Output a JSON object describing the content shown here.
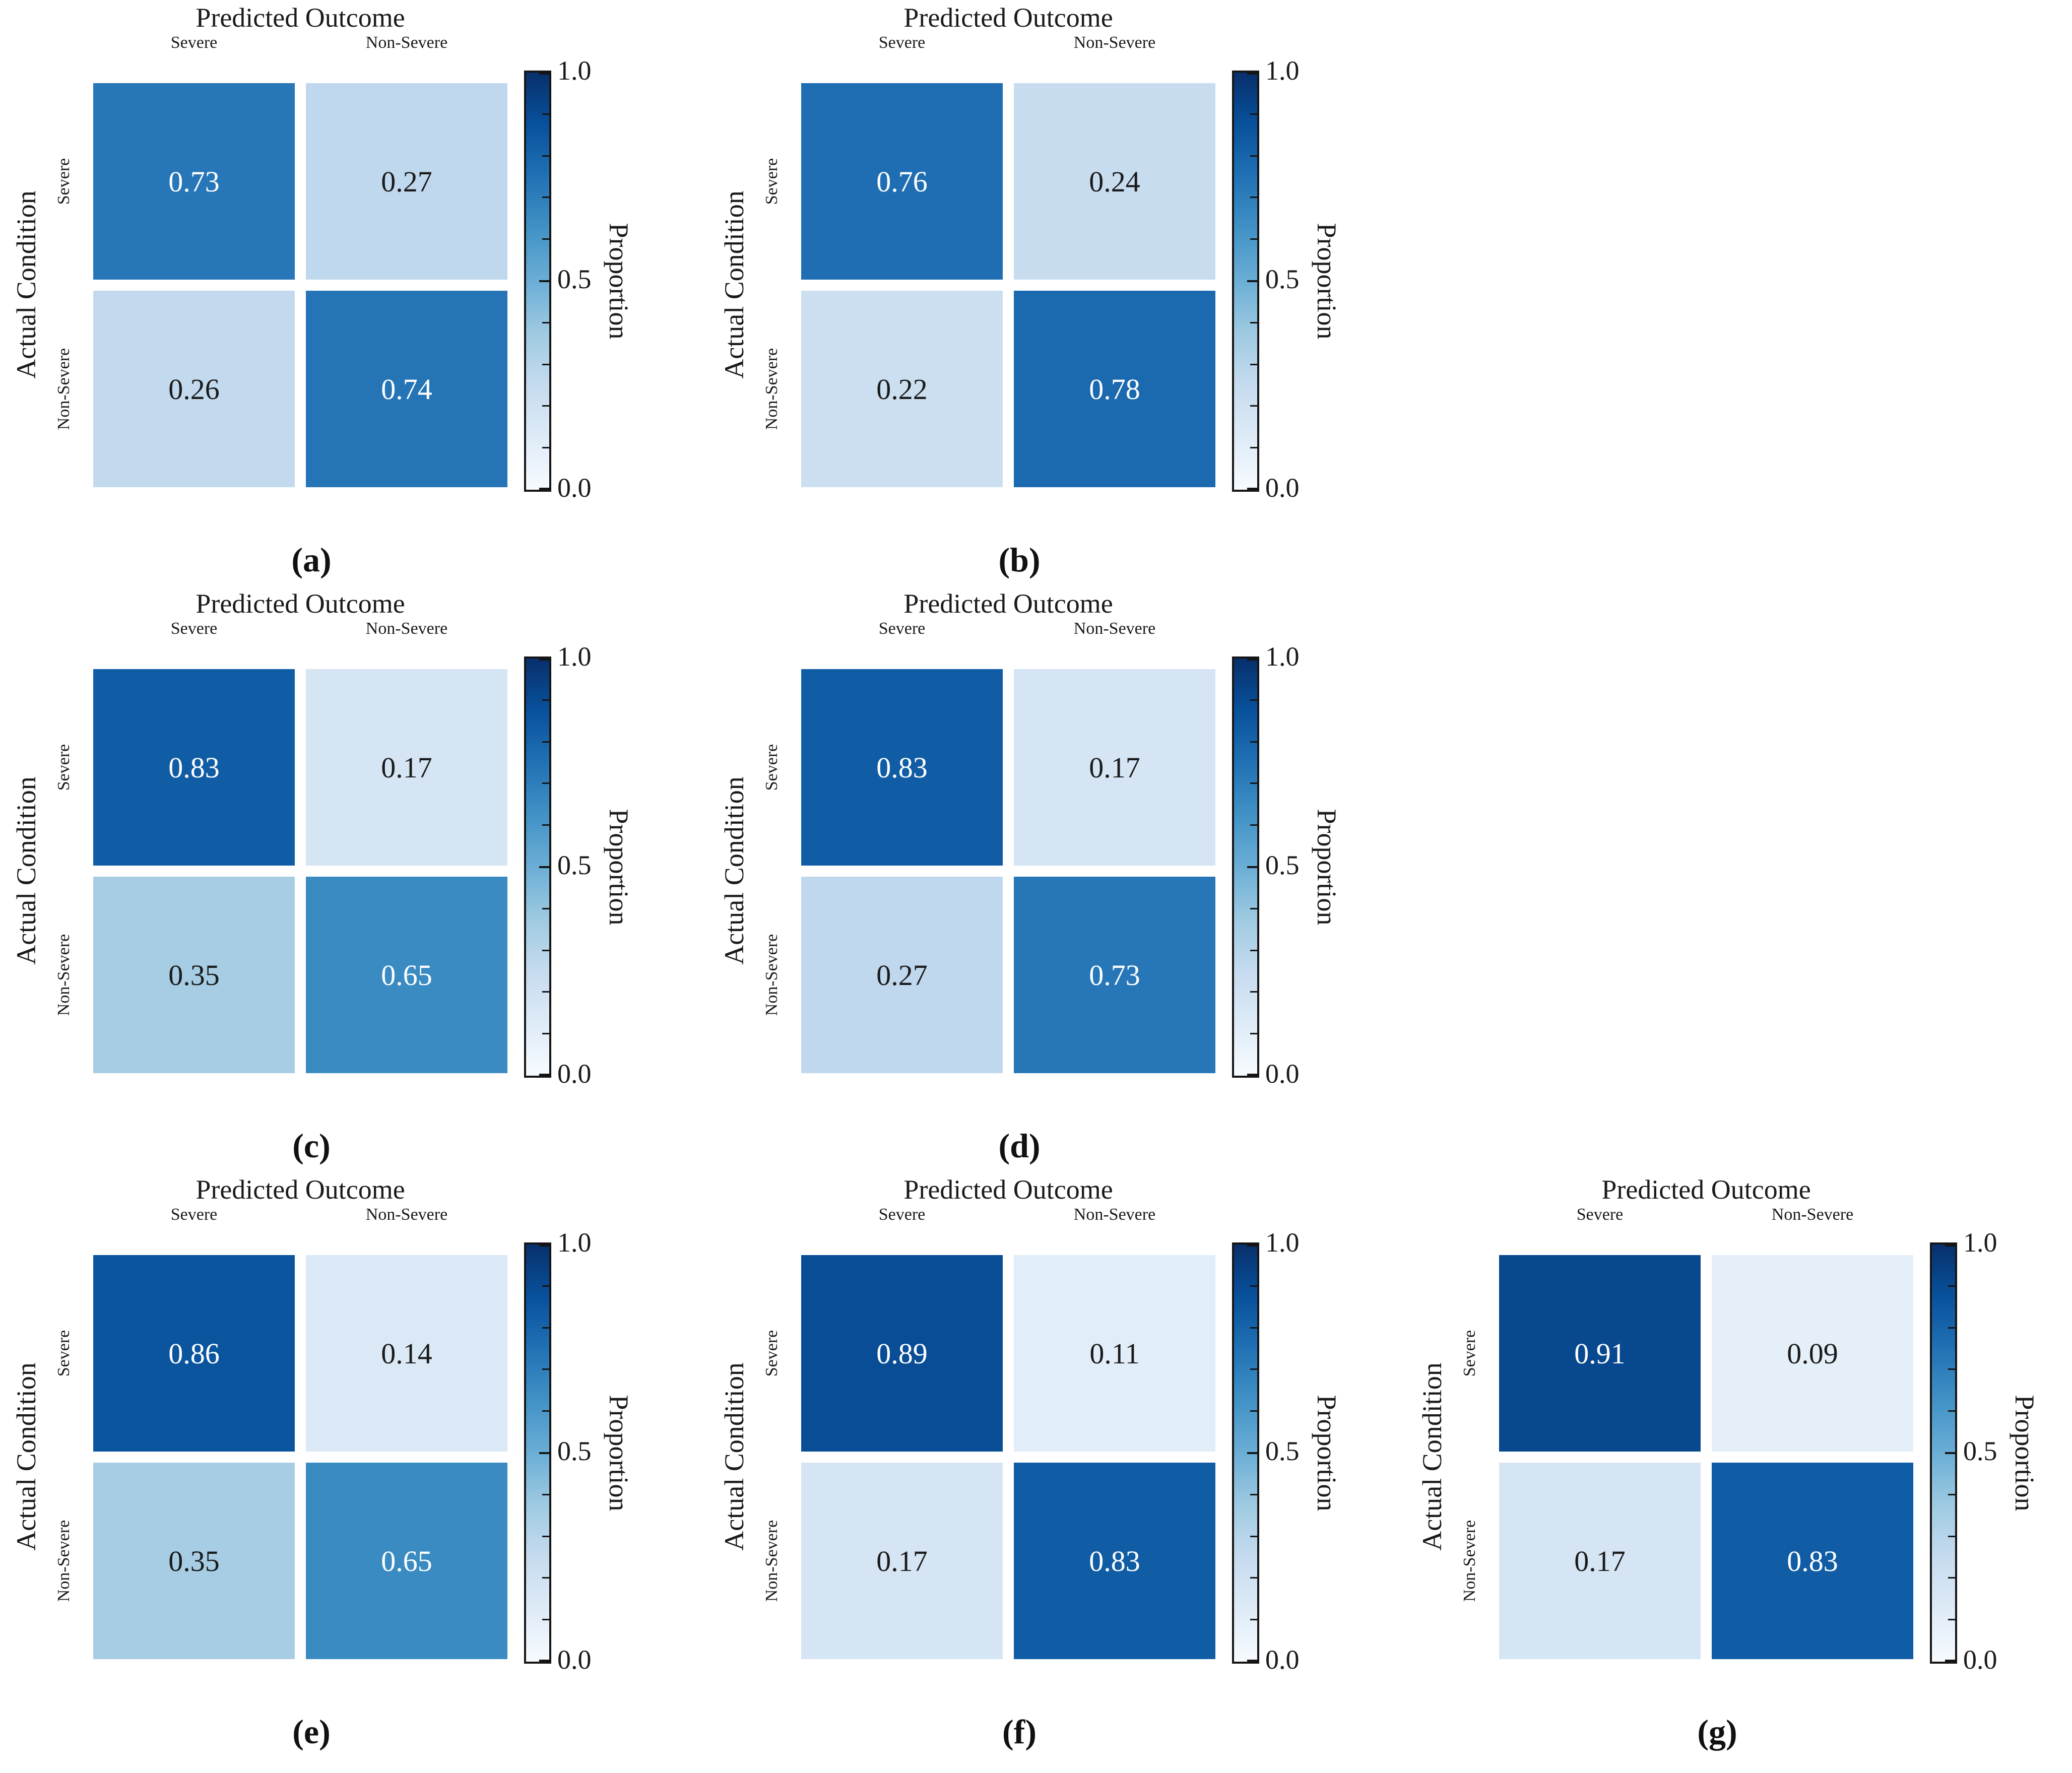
{
  "figure": {
    "x_axis_title": "Predicted Outcome",
    "y_axis_title": "Actual Condition",
    "colorbar_label": "Proportion",
    "classes": [
      "Severe",
      "Non-Severe"
    ],
    "colorbar_tick_labels": [
      "1.0",
      "0.5",
      "0.0"
    ],
    "colormap_name": "Blues",
    "colormap_stops": [
      "#f7fbff",
      "#deebf7",
      "#c6dbef",
      "#9ecae1",
      "#6baed6",
      "#4292c6",
      "#2171b5",
      "#08519c",
      "#08306b"
    ],
    "cell_text_light": "#ffffff",
    "cell_text_dark": "#1a1a1a",
    "colorbar_border_color": "#151515"
  },
  "chart_data": [
    {
      "type": "heatmap",
      "caption": "(a)",
      "xlabel": "Predicted Outcome",
      "ylabel": "Actual Condition",
      "x_categories": [
        "Severe",
        "Non-Severe"
      ],
      "y_categories": [
        "Severe",
        "Non-Severe"
      ],
      "values": [
        [
          0.73,
          0.27
        ],
        [
          0.26,
          0.74
        ]
      ],
      "colorbar": {
        "label": "Proportion",
        "min": 0.0,
        "max": 1.0,
        "major_ticks": [
          0.0,
          0.5,
          1.0
        ],
        "minor_tick_step": 0.1
      }
    },
    {
      "type": "heatmap",
      "caption": "(b)",
      "xlabel": "Predicted Outcome",
      "ylabel": "Actual Condition",
      "x_categories": [
        "Severe",
        "Non-Severe"
      ],
      "y_categories": [
        "Severe",
        "Non-Severe"
      ],
      "values": [
        [
          0.76,
          0.24
        ],
        [
          0.22,
          0.78
        ]
      ],
      "colorbar": {
        "label": "Proportion",
        "min": 0.0,
        "max": 1.0,
        "major_ticks": [
          0.0,
          0.5,
          1.0
        ],
        "minor_tick_step": 0.1
      }
    },
    {
      "type": "heatmap",
      "caption": "(c)",
      "xlabel": "Predicted Outcome",
      "ylabel": "Actual Condition",
      "x_categories": [
        "Severe",
        "Non-Severe"
      ],
      "y_categories": [
        "Severe",
        "Non-Severe"
      ],
      "values": [
        [
          0.83,
          0.17
        ],
        [
          0.35,
          0.65
        ]
      ],
      "colorbar": {
        "label": "Proportion",
        "min": 0.0,
        "max": 1.0,
        "major_ticks": [
          0.0,
          0.5,
          1.0
        ],
        "minor_tick_step": 0.1
      }
    },
    {
      "type": "heatmap",
      "caption": "(d)",
      "xlabel": "Predicted Outcome",
      "ylabel": "Actual Condition",
      "x_categories": [
        "Severe",
        "Non-Severe"
      ],
      "y_categories": [
        "Severe",
        "Non-Severe"
      ],
      "values": [
        [
          0.83,
          0.17
        ],
        [
          0.27,
          0.73
        ]
      ],
      "colorbar": {
        "label": "Proportion",
        "min": 0.0,
        "max": 1.0,
        "major_ticks": [
          0.0,
          0.5,
          1.0
        ],
        "minor_tick_step": 0.1
      }
    },
    {
      "type": "heatmap",
      "caption": "(e)",
      "xlabel": "Predicted Outcome",
      "ylabel": "Actual Condition",
      "x_categories": [
        "Severe",
        "Non-Severe"
      ],
      "y_categories": [
        "Severe",
        "Non-Severe"
      ],
      "values": [
        [
          0.86,
          0.14
        ],
        [
          0.35,
          0.65
        ]
      ],
      "colorbar": {
        "label": "Proportion",
        "min": 0.0,
        "max": 1.0,
        "major_ticks": [
          0.0,
          0.5,
          1.0
        ],
        "minor_tick_step": 0.1
      }
    },
    {
      "type": "heatmap",
      "caption": "(f)",
      "xlabel": "Predicted Outcome",
      "ylabel": "Actual Condition",
      "x_categories": [
        "Severe",
        "Non-Severe"
      ],
      "y_categories": [
        "Severe",
        "Non-Severe"
      ],
      "values": [
        [
          0.89,
          0.11
        ],
        [
          0.17,
          0.83
        ]
      ],
      "colorbar": {
        "label": "Proportion",
        "min": 0.0,
        "max": 1.0,
        "major_ticks": [
          0.0,
          0.5,
          1.0
        ],
        "minor_tick_step": 0.1
      }
    },
    {
      "type": "heatmap",
      "caption": "(g)",
      "xlabel": "Predicted Outcome",
      "ylabel": "Actual Condition",
      "x_categories": [
        "Severe",
        "Non-Severe"
      ],
      "y_categories": [
        "Severe",
        "Non-Severe"
      ],
      "values": [
        [
          0.91,
          0.09
        ],
        [
          0.17,
          0.83
        ]
      ],
      "colorbar": {
        "label": "Proportion",
        "min": 0.0,
        "max": 1.0,
        "major_ticks": [
          0.0,
          0.5,
          1.0
        ],
        "minor_tick_step": 0.1
      }
    }
  ]
}
